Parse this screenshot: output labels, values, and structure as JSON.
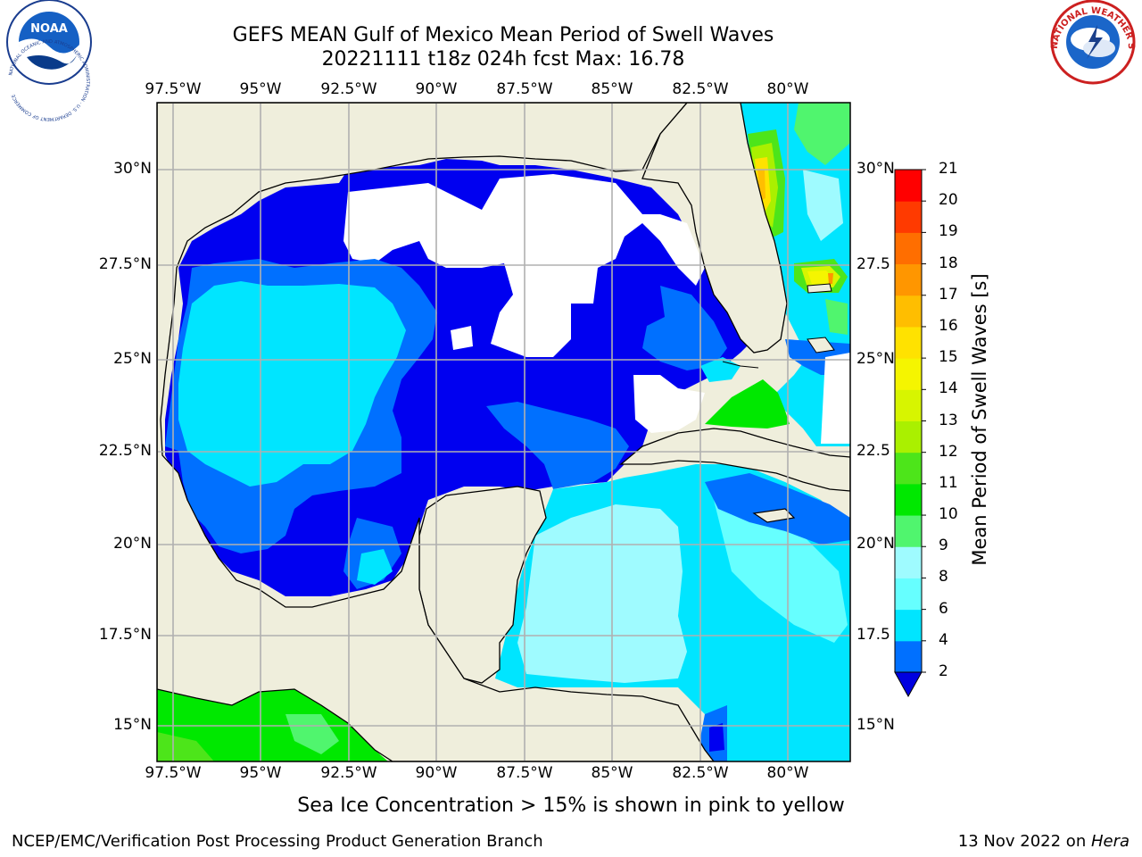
{
  "title_line1": "GEFS MEAN Gulf of Mexico Mean Period of Swell Waves",
  "title_line2": "20221111 t18z 024h fcst   Max: 16.78",
  "logos": {
    "left": {
      "text": "NOAA",
      "ring_text": "NATIONAL OCEANIC AND ATMOSPHERIC ADMINISTRATION · U.S. DEPARTMENT OF COMMERCE"
    },
    "right": {
      "ring_text": "NATIONAL WEATHER SERVICE"
    }
  },
  "lon_labels": [
    "97.5°W",
    "95°W",
    "92.5°W",
    "90°W",
    "87.5°W",
    "85°W",
    "82.5°W",
    "80°W"
  ],
  "lat_labels": [
    "30°N",
    "27.5°N",
    "25°N",
    "22.5°N",
    "20°N",
    "17.5°N",
    "15°N"
  ],
  "lat_labels_right": [
    "30°N",
    "27.5",
    "25°N",
    "22.5",
    "20°N",
    "17.5",
    "15°N"
  ],
  "colorbar": {
    "label": "Mean Period of Swell Waves [s]",
    "ticks": [
      "2",
      "4",
      "6",
      "8",
      "9",
      "10",
      "11",
      "12",
      "13",
      "14",
      "15",
      "16",
      "17",
      "18",
      "19",
      "20",
      "21"
    ],
    "colors": [
      "#0000f0",
      "#0070ff",
      "#00e5ff",
      "#66ffff",
      "#9ffbff",
      "#50f56e",
      "#00e800",
      "#4de51a",
      "#aaf000",
      "#d7f500",
      "#f5f500",
      "#ffe200",
      "#ffbe00",
      "#ff9600",
      "#ff6e00",
      "#ff3a00",
      "#ff0000"
    ],
    "extend_low_color": "#0000e0"
  },
  "map_colors": {
    "land": "#efeedc",
    "no_data": "#ffffff",
    "grid": "#b0b0b0"
  },
  "bottom_note": "Sea Ice Concentration > 15% is shown in pink to yellow",
  "credit": "NCEP/EMC/Verification Post Processing Product Generation Branch",
  "date_text": "13 Nov 2022 on ",
  "date_machine": "Hera"
}
